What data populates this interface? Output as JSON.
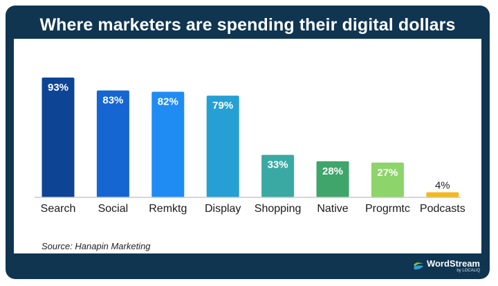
{
  "title": "Where marketers are spending their digital dollars",
  "source": "Source: Hanapin Marketing",
  "logo": {
    "name": "WordStream",
    "sub": "by LOCALiQ",
    "icon": "wordstream-wave-icon",
    "colors": {
      "top": "#7ec242",
      "bottom": "#2a9fd8"
    }
  },
  "chart_data": {
    "type": "bar",
    "title": "Where marketers are spending their digital dollars",
    "xlabel": "",
    "ylabel": "",
    "ylim": [
      0,
      100
    ],
    "grid": false,
    "categories": [
      "Search",
      "Social",
      "Remktg",
      "Display",
      "Shopping",
      "Native",
      "Progrmtc",
      "Podcasts"
    ],
    "values": [
      93,
      83,
      82,
      79,
      33,
      28,
      27,
      4
    ],
    "value_labels": [
      "93%",
      "83%",
      "82%",
      "79%",
      "33%",
      "28%",
      "27%",
      "4%"
    ],
    "colors": [
      "#0d4494",
      "#1566d3",
      "#1f8cf3",
      "#26a0d4",
      "#3aa9a3",
      "#3fa56b",
      "#8dd46a",
      "#f4b81c"
    ]
  }
}
